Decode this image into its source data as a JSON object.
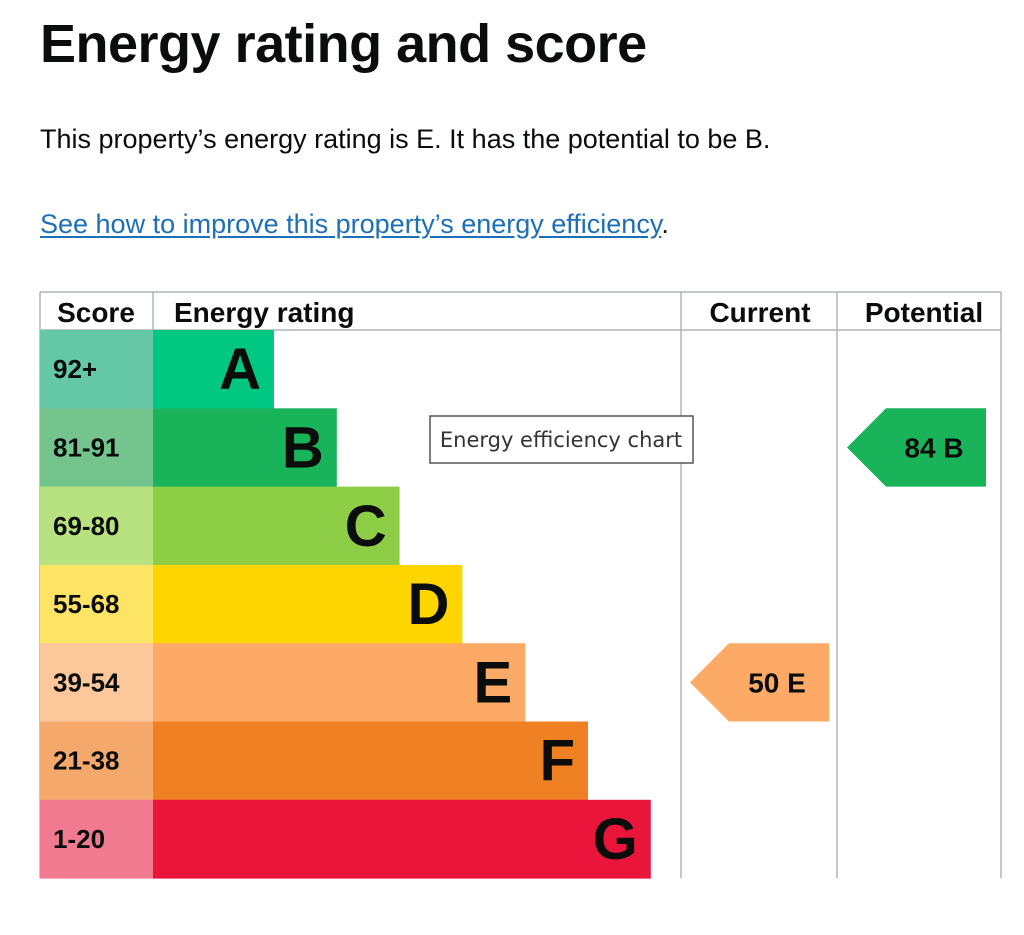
{
  "page": {
    "title": "Energy rating and score",
    "summary": "This property’s energy rating is E. It has the potential to be B.",
    "link_text": "See how to improve this property’s energy efficiency",
    "link_suffix": "."
  },
  "chart_data": {
    "type": "bar",
    "headers": {
      "score": "Score",
      "rating": "Energy rating",
      "current": "Current",
      "potential": "Potential"
    },
    "bands": [
      {
        "letter": "A",
        "range": "92+",
        "min": 92,
        "color": "#00c781",
        "score_bg": "#64c7a6"
      },
      {
        "letter": "B",
        "range": "81-91",
        "min": 81,
        "color": "#19b459",
        "score_bg": "#73c48d"
      },
      {
        "letter": "C",
        "range": "69-80",
        "min": 69,
        "color": "#8dce46",
        "score_bg": "#b8e17f"
      },
      {
        "letter": "D",
        "range": "55-68",
        "min": 55,
        "color": "#ffd500",
        "score_bg": "#fee465"
      },
      {
        "letter": "E",
        "range": "39-54",
        "min": 39,
        "color": "#fcaa65",
        "score_bg": "#fdc79c"
      },
      {
        "letter": "F",
        "range": "21-38",
        "min": 21,
        "color": "#ef8023",
        "score_bg": "#f4a86b"
      },
      {
        "letter": "G",
        "range": "1-20",
        "min": 1,
        "color": "#e9153b",
        "score_bg": "#f07a8f"
      }
    ],
    "current": {
      "score": 50,
      "band": "E",
      "label": "50 E"
    },
    "potential": {
      "score": 84,
      "band": "B",
      "label": "84 B"
    },
    "tooltip": "Energy efficiency chart"
  }
}
